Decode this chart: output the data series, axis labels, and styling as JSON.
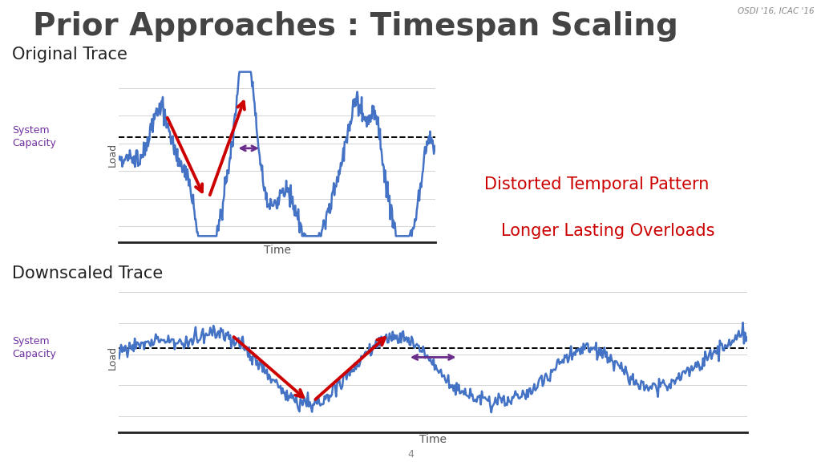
{
  "title": "Prior Approaches : Timespan Scaling",
  "title_plain_part": "Prior Approaches : ",
  "title_bold_part": "Timespan Scaling",
  "subtitle_right": "OSDI '16, ICAC '16",
  "label_original": "Original Trace",
  "label_downscaled": "Downscaled Trace",
  "xlabel": "Time",
  "ylabel": "Load",
  "system_capacity_label": "System\nCapacity",
  "bg_color": "#ffffff",
  "line_color": "#4472C4",
  "dashed_color": "#000000",
  "arrow_color_red": "#CC0000",
  "arrow_color_purple": "#6B2D8B",
  "annotation_color": "#CC0000",
  "annotation_line1": "Distorted Temporal Pattern",
  "annotation_line2": "Longer Lasting Overloads",
  "page_number": "4",
  "grid_color": "#cccccc",
  "title_color": "#444444",
  "syscap_color": "#7030a0"
}
